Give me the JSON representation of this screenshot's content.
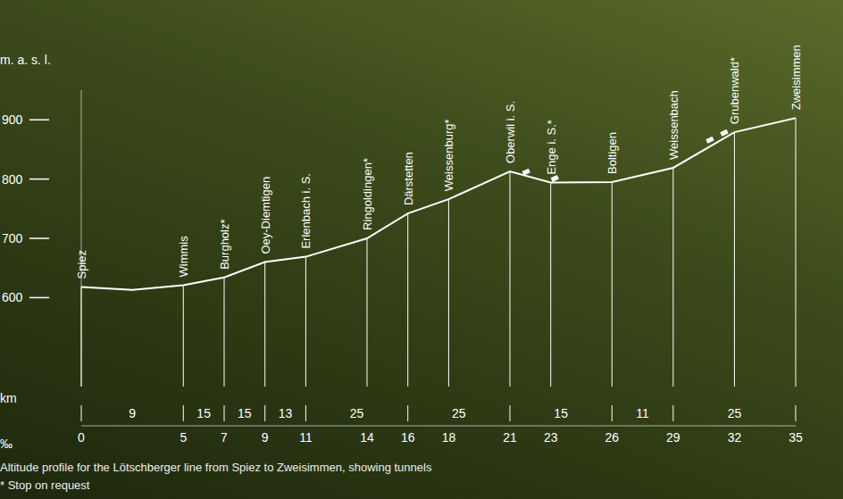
{
  "chart_data": {
    "type": "line",
    "title": "Altitude profile for the Lötschberger line from Spiez to Zweisimmen, showing tunnels",
    "note": "* Stop on request",
    "x_label": "km",
    "y_label": "m. a. s. l.",
    "gradient_label": "‰",
    "color": "#ffffff",
    "x": [
      0,
      2.5,
      5,
      7,
      9,
      11,
      14,
      16,
      18,
      21,
      23,
      26,
      29,
      32,
      35
    ],
    "values": [
      618,
      613,
      621,
      634,
      660,
      669,
      700,
      742,
      766,
      813,
      794,
      795,
      819,
      879,
      903
    ],
    "stations": [
      {
        "name": "Spiez",
        "km": 0
      },
      {
        "name": "Wimmis",
        "km": 5
      },
      {
        "name": "Burgholz*",
        "km": 7
      },
      {
        "name": "Oey-Diemtigen",
        "km": 9
      },
      {
        "name": "Erlenbach i. S.",
        "km": 11
      },
      {
        "name": "Ringoldingen*",
        "km": 14
      },
      {
        "name": "Därstetten",
        "km": 16
      },
      {
        "name": "Weissenburg*",
        "km": 18
      },
      {
        "name": "Oberwil i. S.",
        "km": 21
      },
      {
        "name": "Enge i. S.*",
        "km": 23
      },
      {
        "name": "Boltigen",
        "km": 26
      },
      {
        "name": "Weissenbach",
        "km": 29
      },
      {
        "name": "Grubenwald*",
        "km": 32
      },
      {
        "name": "Zweisimmen",
        "km": 35
      }
    ],
    "gradients": [
      {
        "from": 0,
        "to": 5,
        "value": 9
      },
      {
        "from": 5,
        "to": 7,
        "value": 15
      },
      {
        "from": 7,
        "to": 9,
        "value": 15
      },
      {
        "from": 9,
        "to": 11,
        "value": 13
      },
      {
        "from": 11,
        "to": 16,
        "value": 25
      },
      {
        "from": 16,
        "to": 21,
        "value": 25
      },
      {
        "from": 21,
        "to": 26,
        "value": 15
      },
      {
        "from": 26,
        "to": 29,
        "value": 11
      },
      {
        "from": 29,
        "to": 35,
        "value": 25
      }
    ],
    "tunnels": [
      {
        "km": 21.8,
        "altitude": 812
      },
      {
        "km": 23.2,
        "altitude": 801
      },
      {
        "km": 30.8,
        "altitude": 866
      },
      {
        "km": 31.5,
        "altitude": 878
      }
    ],
    "xlim": [
      0,
      35
    ],
    "xticks": [
      0,
      5,
      7,
      9,
      11,
      14,
      16,
      18,
      21,
      23,
      26,
      29,
      32,
      35
    ],
    "ylim": [
      450,
      950
    ],
    "yticks": [
      600,
      700,
      800,
      900
    ]
  }
}
